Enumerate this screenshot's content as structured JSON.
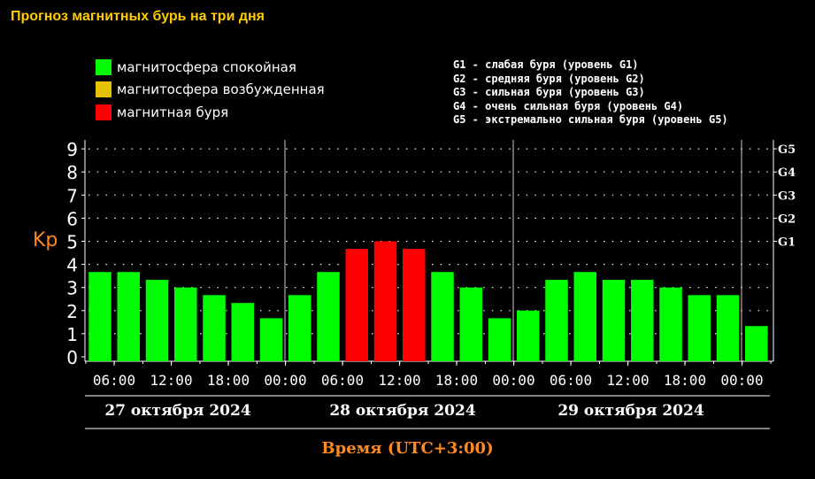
{
  "title": "Прогноз магнитных бурь на три дня",
  "legend": [
    {
      "label": "магнитосфера спокойная",
      "color": "#00ff00"
    },
    {
      "label": "магнитосфера возбужденная",
      "color": "#e6c300"
    },
    {
      "label": "магнитная буря",
      "color": "#ff0000"
    }
  ],
  "g_legend": [
    "G1 - слабая буря (уровень G1)",
    "G2 - средняя буря (уровень G2)",
    "G3 - сильная буря (уровень G3)",
    "G4 - очень сильная буря (уровень G4)",
    "G5 - экстремально сильная буря (уровень G5)"
  ],
  "dates": [
    "27 октября 2024",
    "28 октября 2024",
    "29 октября 2024"
  ],
  "xlabel": "Время (UTC+3:00)",
  "ylabel": "Kp",
  "chart_data": {
    "type": "bar",
    "title": "Прогноз магнитных бурь на три дня",
    "xlabel": "Время (UTC+3:00)",
    "ylabel": "Kp",
    "ylim": [
      0,
      9
    ],
    "y_ticks": [
      "0",
      "1",
      "2",
      "3",
      "4",
      "5",
      "6",
      "7",
      "8",
      "9"
    ],
    "g_ticks": [
      "G1",
      "G2",
      "G3",
      "G4",
      "G5"
    ],
    "x_tick_labels": [
      "06:00",
      "12:00",
      "18:00",
      "00:00",
      "06:00",
      "12:00",
      "18:00",
      "00:00",
      "06:00",
      "12:00",
      "18:00",
      "00:00"
    ],
    "values": [
      3.67,
      3.67,
      3.33,
      3.0,
      2.67,
      2.33,
      1.67,
      2.67,
      3.67,
      4.67,
      5.0,
      4.67,
      3.67,
      3.0,
      1.67,
      2.0,
      3.33,
      3.67,
      3.33,
      3.33,
      3.0,
      2.67,
      2.67,
      1.33
    ],
    "bar_colors": [
      "#00ff00",
      "#00ff00",
      "#00ff00",
      "#00ff00",
      "#00ff00",
      "#00ff00",
      "#00ff00",
      "#00ff00",
      "#00ff00",
      "#ff0000",
      "#ff0000",
      "#ff0000",
      "#00ff00",
      "#00ff00",
      "#00ff00",
      "#00ff00",
      "#00ff00",
      "#00ff00",
      "#00ff00",
      "#00ff00",
      "#00ff00",
      "#00ff00",
      "#00ff00",
      "#00ff00"
    ],
    "grid": true
  }
}
